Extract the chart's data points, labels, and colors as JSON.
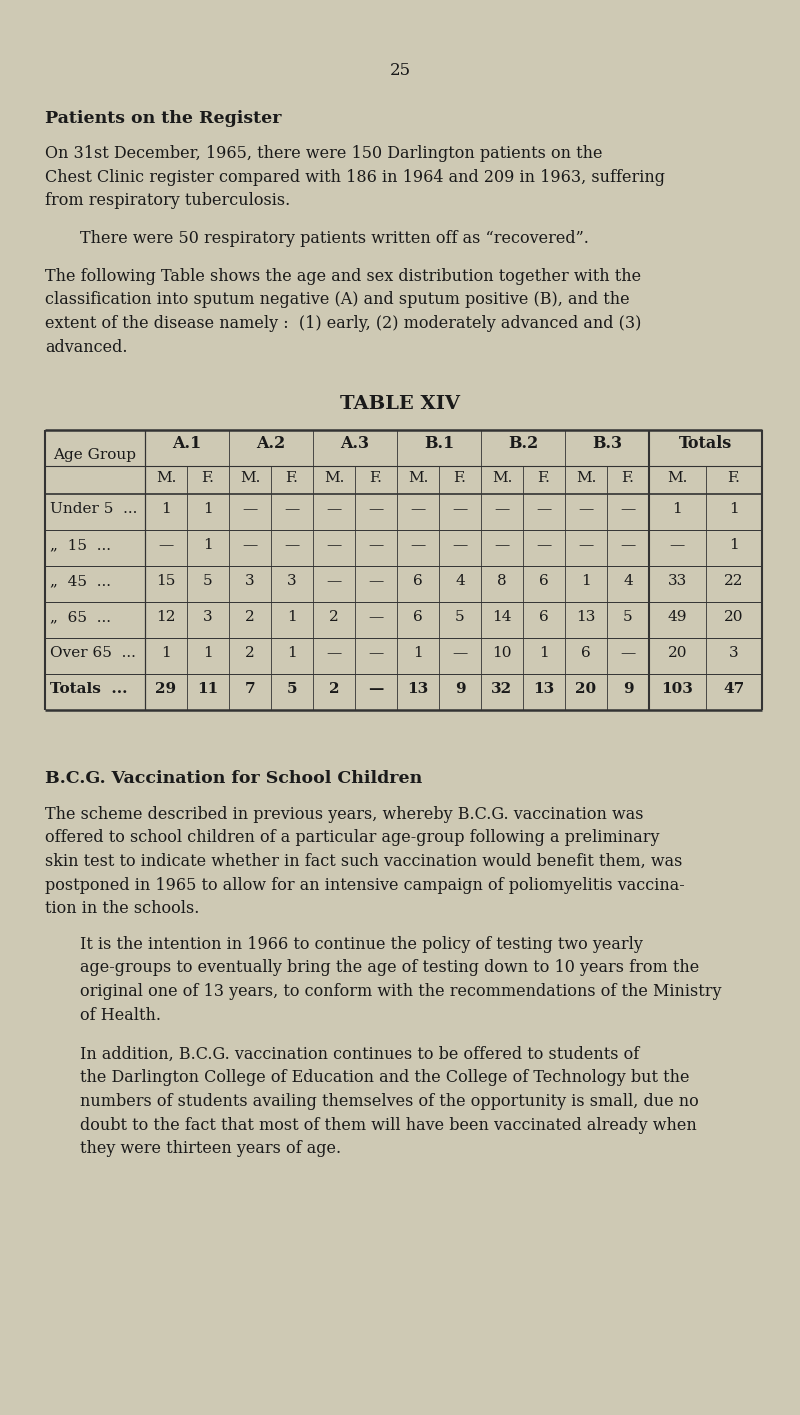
{
  "page_number": "25",
  "bg_color": "#cec9b4",
  "text_color": "#1a1a1a",
  "section1_heading": "Patients on the Register",
  "section1_para1": "On 31st December, 1965, there were 150 Darlington patients on the\nChest Clinic register compared with 186 in 1964 and 209 in 1963, suffering\nfrom respiratory tuberculosis.",
  "section1_para2": "There were 50 respiratory patients written off as “recovered”.",
  "section1_para3": "The following Table shows the age and sex distribution together with the\nclassification into sputum negative (A) and sputum positive (B), and the\nextent of the disease namely :  (1) early, (2) moderately advanced and (3)\nadvanced.",
  "table_title": "TABLE XIV",
  "table_col_groups": [
    "A.1",
    "A.2",
    "A.3",
    "B.1",
    "B.2",
    "B.3",
    "Totals"
  ],
  "table_data": [
    [
      "Under 5  ...",
      1,
      1,
      "",
      "",
      "",
      "",
      "",
      "",
      "",
      "",
      "",
      "",
      1,
      1
    ],
    [
      "„  15  ...",
      "",
      1,
      "",
      "",
      "",
      "",
      "",
      "",
      "",
      "",
      "",
      "",
      "",
      1
    ],
    [
      "„  45  ...",
      15,
      5,
      3,
      3,
      "",
      "",
      6,
      4,
      8,
      6,
      1,
      4,
      33,
      22
    ],
    [
      "„  65  ...",
      12,
      3,
      2,
      1,
      2,
      "",
      6,
      5,
      14,
      6,
      13,
      5,
      49,
      20
    ],
    [
      "Over 65  ...",
      1,
      1,
      2,
      1,
      "",
      "",
      1,
      "",
      10,
      1,
      6,
      "",
      20,
      3
    ],
    [
      "Totals  ...",
      29,
      11,
      7,
      5,
      2,
      "",
      13,
      9,
      32,
      13,
      20,
      9,
      103,
      47
    ]
  ],
  "section2_heading": "B.C.G. Vaccination for School Children",
  "section2_para1": "The scheme described in previous years, whereby B.C.G. vaccination was\noffered to school children of a particular age-group following a preliminary\nskin test to indicate whether in fact such vaccination would benefit them, was\npostponed in 1965 to allow for an intensive campaign of poliomyelitis vaccina-\ntion in the schools.",
  "section2_para2": "It is the intention in 1966 to continue the policy of testing two yearly\nage-groups to eventually bring the age of testing down to 10 years from the\noriginal one of 13 years, to conform with the recommendations of the Ministry\nof Health.",
  "section2_para3": "In addition, B.C.G. vaccination continues to be offered to students of\nthe Darlington College of Education and the College of Technology but the\nnumbers of students availing themselves of the opportunity is small, due no\ndoubt to the fact that most of them will have been vaccinated already when\nthey were thirteen years of age."
}
